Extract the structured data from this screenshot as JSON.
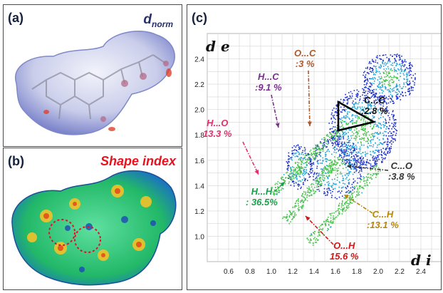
{
  "panels": {
    "a": {
      "label": "(a)",
      "title_main": "d",
      "title_sub": "norm"
    },
    "b": {
      "label": "(b)",
      "title": "Shape index"
    },
    "c": {
      "label": "(c)"
    }
  },
  "axis_labels": {
    "y": "d e",
    "x": "d i"
  },
  "annotations": {
    "hc": {
      "l1": "H...C",
      "l2": ":9.1 %",
      "color": "#7b2d8e"
    },
    "oc": {
      "l1": "O...C",
      "l2": ":3 %",
      "color": "#b0582a"
    },
    "cc": {
      "l1": "C...C",
      "l2": ":2.8 %",
      "color": "#111111"
    },
    "ho": {
      "l1": "H...O",
      "l2": "13.3 %",
      "color": "#e0306e"
    },
    "co": {
      "l1": "C...O",
      "l2": ":3.8 %",
      "color": "#333333"
    },
    "hh": {
      "l1": "H...H",
      "l2": ": 36.5%",
      "color": "#1aa04a"
    },
    "ch": {
      "l1": "C...H",
      "l2": ":13.1 %",
      "color": "#b8860b"
    },
    "oh": {
      "l1": "O...H",
      "l2": "15.6 %",
      "color": "#d01818"
    }
  },
  "chart_data": {
    "type": "scatter",
    "title": "",
    "xlabel": "d i",
    "ylabel": "d e",
    "x_ticks": [
      "0.6",
      "0.8",
      "1.0",
      "1.2",
      "1.4",
      "1.6",
      "1.8",
      "2.0",
      "2.2",
      "2.4"
    ],
    "y_ticks": [
      "1.0",
      "1.2",
      "1.4",
      "1.6",
      "1.8",
      "2.0",
      "2.2",
      "2.4"
    ],
    "xlim": [
      0.4,
      2.6
    ],
    "ylim": [
      0.8,
      2.6
    ],
    "grid": true,
    "series": [
      {
        "name": "H...H",
        "value": 36.5
      },
      {
        "name": "O...H",
        "value": 15.6
      },
      {
        "name": "H...O",
        "value": 13.3
      },
      {
        "name": "C...H",
        "value": 13.1
      },
      {
        "name": "H...C",
        "value": 9.1
      },
      {
        "name": "C...O",
        "value": 3.8
      },
      {
        "name": "O...C",
        "value": 3
      },
      {
        "name": "C...C",
        "value": 2.8
      }
    ]
  }
}
